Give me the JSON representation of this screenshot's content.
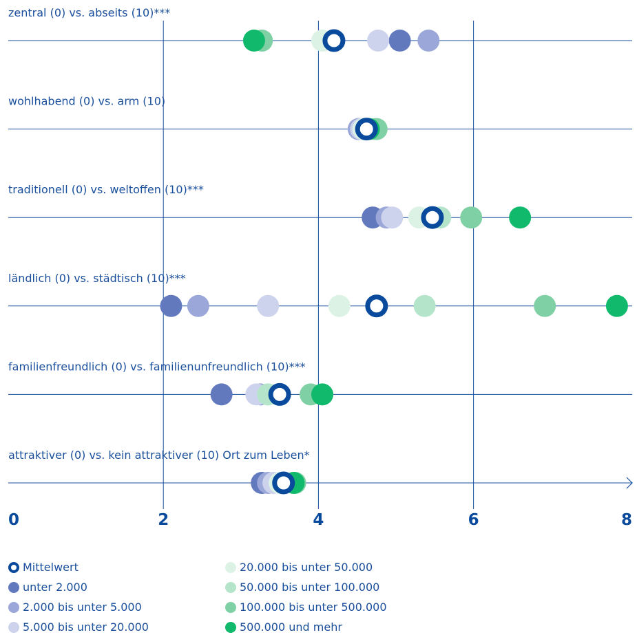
{
  "chart_data": {
    "type": "scatter",
    "x_ticks": [
      "0",
      "2",
      "4",
      "6",
      "8"
    ],
    "xlim": [
      0,
      8
    ],
    "grid": true,
    "legend_position": "bottom",
    "colors": {
      "mean_outline": "#0a4a9c",
      "axis": "#1a4f9c",
      "unter_2000": "#6279be",
      "2000_5000": "#9ba7d8",
      "5000_20000": "#cdd3ed",
      "20000_50000": "#dcf2e5",
      "50000_100000": "#b4e4c9",
      "100000_500000": "#7fd0a4",
      "500000_mehr": "#10b96b"
    },
    "legend": [
      {
        "label": "Mittelwert",
        "key": "mean"
      },
      {
        "label": "unter 2.000",
        "key": "unter_2000"
      },
      {
        "label": "2.000 bis unter 5.000",
        "key": "2000_5000"
      },
      {
        "label": "5.000 bis unter 20.000",
        "key": "5000_20000"
      },
      {
        "label": "20.000 bis unter 50.000",
        "key": "20000_50000"
      },
      {
        "label": "50.000 bis unter 100.000",
        "key": "50000_100000"
      },
      {
        "label": "100.000 bis unter 500.000",
        "key": "100000_500000"
      },
      {
        "label": "500.000 und mehr",
        "key": "500000_mehr"
      }
    ],
    "rows": [
      {
        "label": "zentral (0) vs. abseits (10)***",
        "values": {
          "unter_2000": 5.05,
          "2000_5000": 5.42,
          "5000_20000": 4.77,
          "20000_50000": 4.05,
          "50000_100000": 3.27,
          "100000_500000": 3.27,
          "500000_mehr": 3.17
        },
        "mean": 4.2
      },
      {
        "label": "wohlhabend (0) vs. arm (10)",
        "values": {
          "unter_2000": 4.52,
          "2000_5000": 4.52,
          "5000_20000": 4.55,
          "20000_50000": 4.58,
          "50000_100000": 4.72,
          "100000_500000": 4.75,
          "500000_mehr": 4.65
        },
        "mean": 4.62
      },
      {
        "label": "traditionell (0) vs. weltoffen (10)***",
        "values": {
          "unter_2000": 4.7,
          "2000_5000": 4.88,
          "5000_20000": 4.95,
          "20000_50000": 5.3,
          "50000_100000": 5.57,
          "100000_500000": 5.97,
          "500000_mehr": 6.6
        },
        "mean": 5.47
      },
      {
        "label": "ländlich (0) vs. städtisch (10)***",
        "values": {
          "unter_2000": 2.1,
          "2000_5000": 2.45,
          "5000_20000": 3.35,
          "20000_50000": 4.27,
          "50000_100000": 5.37,
          "100000_500000": 6.92,
          "500000_mehr": 7.85
        },
        "mean": 4.75
      },
      {
        "label": "familienfreundlich (0) vs. familienunfreundlich (10)***",
        "values": {
          "unter_2000": 2.75,
          "2000_5000": 3.25,
          "5000_20000": 3.2,
          "20000_50000": 3.35,
          "50000_100000": 3.35,
          "100000_500000": 3.9,
          "500000_mehr": 4.05
        },
        "mean": 3.5
      },
      {
        "label": "attraktiver (0) vs. kein attraktiver (10) Ort zum Leben*",
        "values": {
          "unter_2000": 3.27,
          "2000_5000": 3.35,
          "5000_20000": 3.42,
          "20000_50000": 3.5,
          "50000_100000": 3.55,
          "100000_500000": 3.7,
          "500000_mehr": 3.68
        },
        "mean": 3.55
      }
    ]
  }
}
